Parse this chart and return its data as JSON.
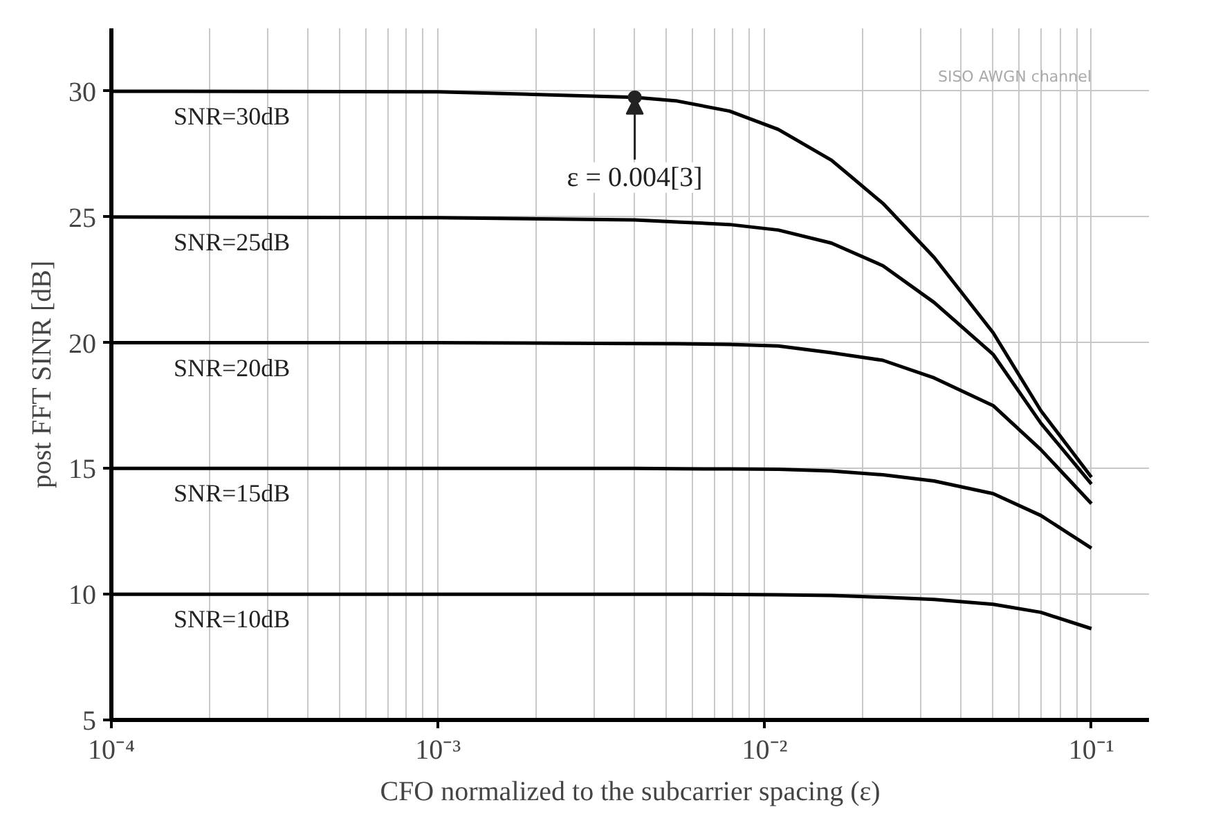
{
  "chart_data": {
    "type": "line",
    "xlabel": "CFO normalized to the subcarrier spacing (ε)",
    "ylabel": "post FFT SINR [dB]",
    "log": "x",
    "x": [
      0.0001,
      0.001,
      0.004,
      0.0054,
      0.0078,
      0.011,
      0.016,
      0.023,
      0.033,
      0.05,
      0.07,
      0.1
    ],
    "series": [
      {
        "name": "SNR=30dB",
        "color": "#000000",
        "values": [
          30,
          29.98,
          29.76,
          29.61,
          29.21,
          28.48,
          27.26,
          25.54,
          23.39,
          20.4,
          17.3,
          14.65
        ]
      },
      {
        "name": "SNR=25dB",
        "color": "#000000",
        "values": [
          25,
          24.97,
          24.88,
          24.8,
          24.7,
          24.48,
          23.96,
          23.06,
          21.6,
          19.54,
          16.8,
          14.38
        ]
      },
      {
        "name": "SNR=20dB",
        "color": "#000000",
        "values": [
          20,
          20,
          19.97,
          19.96,
          19.93,
          19.87,
          19.6,
          19.3,
          18.6,
          17.5,
          15.75,
          13.6
        ]
      },
      {
        "name": "SNR=15dB",
        "color": "#000000",
        "values": [
          15,
          15,
          15,
          14.99,
          14.98,
          14.97,
          14.9,
          14.75,
          14.5,
          14.0,
          13.13,
          11.83
        ]
      },
      {
        "name": "SNR=10dB",
        "color": "#000000",
        "values": [
          10,
          10,
          10,
          10,
          9.99,
          9.98,
          9.95,
          9.88,
          9.79,
          9.6,
          9.28,
          8.63
        ]
      }
    ],
    "xlim": [
      0.0001,
      0.15
    ],
    "ylim": [
      5,
      32.5
    ],
    "xticks": [
      {
        "value": 0.0001,
        "label": "10⁻⁴"
      },
      {
        "value": 0.001,
        "label": "10⁻³"
      },
      {
        "value": 0.01,
        "label": "10⁻²"
      },
      {
        "value": 0.1,
        "label": "10⁻¹"
      }
    ],
    "yticks": [
      5,
      10,
      15,
      20,
      25,
      30
    ],
    "grid": true,
    "marker": "none",
    "line_style": "solid",
    "annotations": [
      {
        "text": "ε = 0.004[3]",
        "x": 0.004,
        "y": 29.76
      },
      "SISO AWGN channel"
    ]
  }
}
